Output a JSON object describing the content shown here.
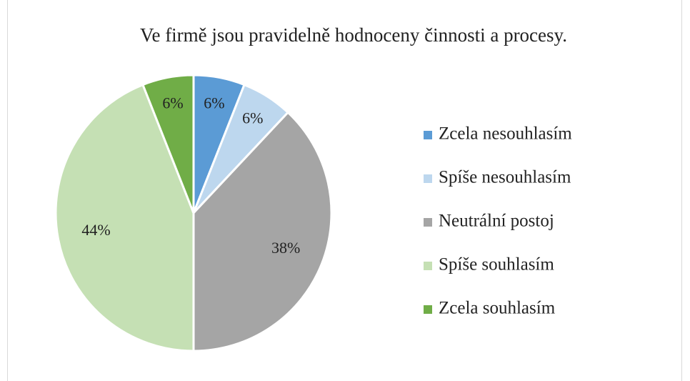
{
  "chart_data": {
    "type": "pie",
    "title": "Ve firmě jsou pravidelně hodnoceny činnosti a procesy.",
    "categories": [
      "Zcela nesouhlasím",
      "Spíše nesouhlasím",
      "Neutrální postoj",
      "Spíše souhlasím",
      "Zcela souhlasím"
    ],
    "values": [
      6,
      6,
      38,
      44,
      6
    ],
    "value_labels": [
      "6%",
      "6%",
      "38%",
      "44%",
      "6%"
    ],
    "colors": [
      "#5b9bd5",
      "#bdd7ee",
      "#a5a5a5",
      "#c5e0b4",
      "#70ad47"
    ],
    "legend": "right"
  }
}
